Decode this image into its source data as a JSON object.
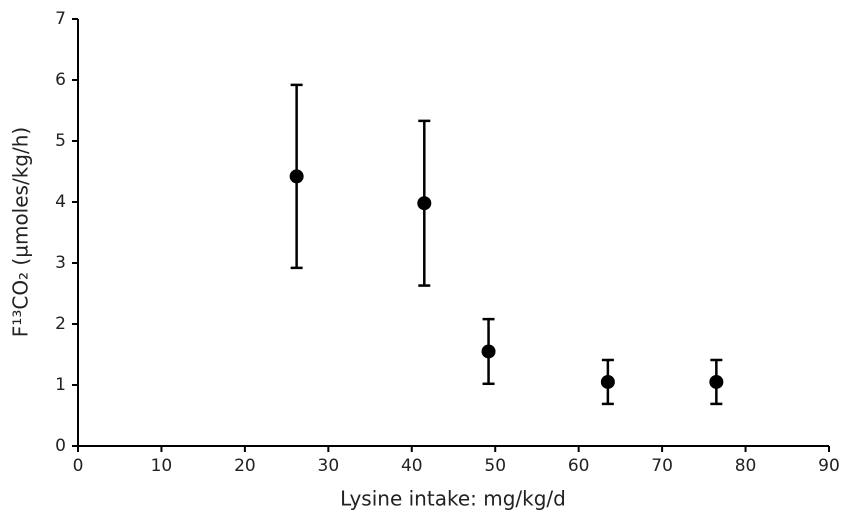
{
  "chart_data": {
    "type": "scatter",
    "x_label": "Lysine intake: mg/kg/d",
    "y_label": "F¹³CO₂ (µmoles/kg/h)",
    "x": [
      26.2,
      41.5,
      49.2,
      63.5,
      76.5
    ],
    "series": [
      {
        "color": "#000000",
        "values": [
          4.42,
          3.98,
          1.55,
          1.05,
          1.05
        ],
        "errors": [
          1.5,
          1.35,
          0.53,
          0.36,
          0.36
        ]
      }
    ],
    "xlim": [
      0,
      90
    ],
    "xticks": [
      0,
      10,
      20,
      30,
      40,
      50,
      60,
      70,
      80,
      90
    ],
    "ylim": [
      0,
      7
    ],
    "yticks": [
      0,
      1,
      2,
      3,
      4,
      5,
      6,
      7
    ],
    "grid": false
  }
}
